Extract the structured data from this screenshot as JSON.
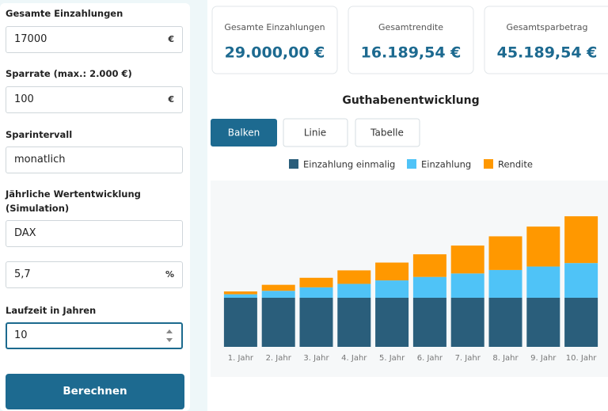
{
  "form": {
    "fields": [
      {
        "label": "Gesamte Einzahlungen",
        "value": "17000",
        "unit": "€"
      },
      {
        "label": "Sparrate (max.: 2.000 €)",
        "value": "100",
        "unit": "€"
      },
      {
        "label": "Sparintervall",
        "value": "monatlich"
      },
      {
        "label": "Jährliche Wertentwicklung (Simulation)",
        "value": "DAX"
      },
      {
        "value": "5,7",
        "unit": "%"
      },
      {
        "label": "Laufzeit in Jahren",
        "value": "10"
      }
    ],
    "button": "Berechnen"
  },
  "summary": [
    {
      "label": "Gesamte Einzahlungen",
      "value": "29.000,00 €"
    },
    {
      "label": "Gesamtrendite",
      "value": "16.189,54 €"
    },
    {
      "label": "Gesamtsparbetrag",
      "value": "45.189,54 €"
    }
  ],
  "tabs": [
    "Balken",
    "Linie",
    "Tabelle"
  ],
  "chart_data": {
    "type": "bar",
    "stacked": true,
    "title": "Guthabenentwicklung",
    "categories": [
      "1. Jahr",
      "2. Jahr",
      "3. Jahr",
      "4. Jahr",
      "5. Jahr",
      "6. Jahr",
      "7. Jahr",
      "8. Jahr",
      "9. Jahr",
      "10. Jahr"
    ],
    "series": [
      {
        "name": "Einzahlung einmalig",
        "color": "#2a5e7b",
        "values": [
          17000,
          17000,
          17000,
          17000,
          17000,
          17000,
          17000,
          17000,
          17000,
          17000
        ]
      },
      {
        "name": "Einzahlung",
        "color": "#4fc3f7",
        "values": [
          1200,
          2400,
          3600,
          4800,
          6000,
          7200,
          8400,
          9600,
          10800,
          12000
        ]
      },
      {
        "name": "Rendite",
        "color": "#ff9800",
        "values": [
          980,
          2070,
          3300,
          4670,
          6170,
          7830,
          9650,
          11650,
          13820,
          16190
        ]
      }
    ],
    "ylim": [
      0,
      57000
    ]
  }
}
